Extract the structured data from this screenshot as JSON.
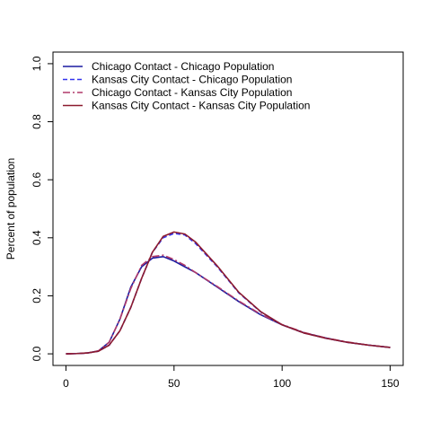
{
  "chart_data": {
    "type": "line",
    "title": "",
    "xlabel": "",
    "ylabel": "Percent of population",
    "xlim": [
      -6,
      156
    ],
    "ylim": [
      -0.04,
      1.04
    ],
    "x_ticks": [
      0,
      50,
      100,
      150
    ],
    "y_ticks": [
      0.0,
      0.2,
      0.4,
      0.6,
      0.8,
      1.0
    ],
    "x_tick_labels": [
      "0",
      "50",
      "100",
      "150"
    ],
    "y_tick_labels": [
      "0.0",
      "0.2",
      "0.4",
      "0.6",
      "0.8",
      "1.0"
    ],
    "grid": false,
    "legend_position": "top-left",
    "series": [
      {
        "name": "Chicago Contact - Chicago Population",
        "color": "#1a1aa0",
        "dash": "solid",
        "x": [
          0,
          5,
          10,
          15,
          20,
          25,
          30,
          35,
          40,
          45,
          50,
          55,
          60,
          70,
          80,
          90,
          100,
          110,
          120,
          130,
          140,
          150
        ],
        "y": [
          0.0,
          0.001,
          0.003,
          0.01,
          0.04,
          0.12,
          0.23,
          0.3,
          0.33,
          0.335,
          0.32,
          0.3,
          0.28,
          0.23,
          0.18,
          0.135,
          0.1,
          0.073,
          0.055,
          0.04,
          0.03,
          0.022
        ]
      },
      {
        "name": "Kansas City Contact - Chicago Population",
        "color": "#3333ee",
        "dash": "dashed",
        "x": [
          0,
          5,
          10,
          15,
          20,
          25,
          30,
          35,
          40,
          45,
          50,
          55,
          60,
          70,
          80,
          90,
          100,
          110,
          120,
          130,
          140,
          150
        ],
        "y": [
          0.0,
          0.001,
          0.003,
          0.009,
          0.03,
          0.08,
          0.16,
          0.26,
          0.35,
          0.4,
          0.415,
          0.41,
          0.38,
          0.3,
          0.21,
          0.145,
          0.1,
          0.072,
          0.054,
          0.04,
          0.03,
          0.022
        ]
      },
      {
        "name": "Chicago Contact - Kansas City Population",
        "color": "#b03a6a",
        "dash": "dashdot",
        "x": [
          0,
          5,
          10,
          15,
          20,
          25,
          30,
          35,
          40,
          45,
          50,
          55,
          60,
          70,
          80,
          90,
          100,
          110,
          120,
          130,
          140,
          150
        ],
        "y": [
          0.0,
          0.001,
          0.003,
          0.01,
          0.04,
          0.12,
          0.225,
          0.305,
          0.335,
          0.34,
          0.325,
          0.305,
          0.28,
          0.232,
          0.182,
          0.137,
          0.101,
          0.074,
          0.055,
          0.041,
          0.03,
          0.022
        ]
      },
      {
        "name": "Kansas City Contact - Kansas City Population",
        "color": "#8b1a2e",
        "dash": "solid",
        "x": [
          0,
          5,
          10,
          15,
          20,
          25,
          30,
          35,
          40,
          45,
          50,
          55,
          60,
          70,
          80,
          90,
          100,
          110,
          120,
          130,
          140,
          150
        ],
        "y": [
          0.0,
          0.001,
          0.003,
          0.009,
          0.03,
          0.08,
          0.16,
          0.26,
          0.35,
          0.405,
          0.42,
          0.413,
          0.385,
          0.303,
          0.212,
          0.146,
          0.1,
          0.072,
          0.054,
          0.04,
          0.03,
          0.022
        ]
      }
    ]
  }
}
